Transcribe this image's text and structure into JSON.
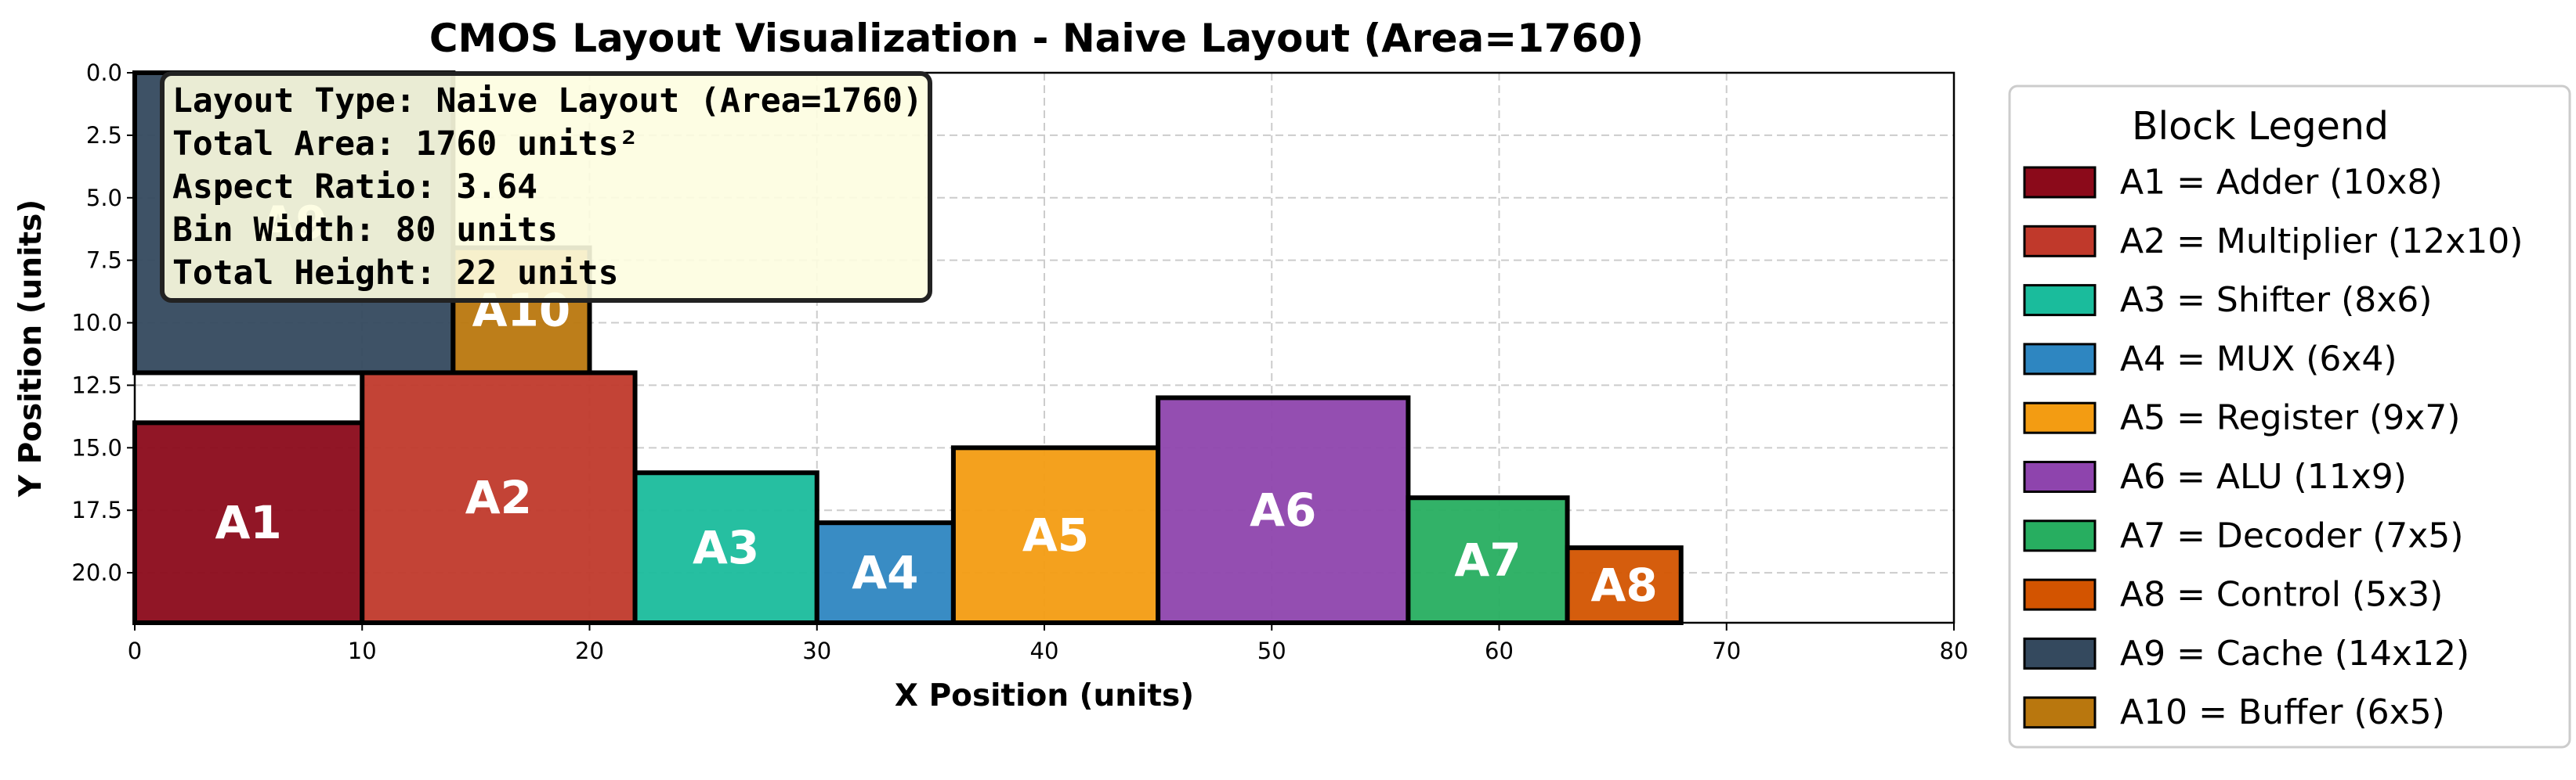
{
  "chart_data": {
    "type": "bar",
    "title": "CMOS Layout Visualization - Naive Layout (Area=1760)",
    "xlabel": "X Position (units)",
    "ylabel": "Y Position (units)",
    "xlim": [
      0,
      80
    ],
    "ylim": [
      0,
      22
    ],
    "y_inverted": true,
    "grid": true,
    "x_ticks": [
      0,
      10,
      20,
      30,
      40,
      50,
      60,
      70,
      80
    ],
    "y_ticks": [
      0.0,
      2.5,
      5.0,
      7.5,
      10.0,
      12.5,
      15.0,
      17.5,
      20.0
    ],
    "x_tick_labels": [
      "0",
      "10",
      "20",
      "30",
      "40",
      "50",
      "60",
      "70",
      "80"
    ],
    "y_tick_labels": [
      "0.0",
      "2.5",
      "5.0",
      "7.5",
      "10.0",
      "12.5",
      "15.0",
      "17.5",
      "20.0"
    ],
    "blocks": [
      {
        "label": "A9",
        "x": 0,
        "y": 0,
        "width": 14,
        "height": 12,
        "color": "#34495e"
      },
      {
        "label": "A10",
        "x": 14,
        "y": 7,
        "width": 6,
        "height": 5,
        "color": "#b9770e"
      },
      {
        "label": "A1",
        "x": 0,
        "y": 14,
        "width": 10,
        "height": 8,
        "color": "#8b0a1a"
      },
      {
        "label": "A2",
        "x": 10,
        "y": 12,
        "width": 12,
        "height": 10,
        "color": "#c0392b"
      },
      {
        "label": "A3",
        "x": 22,
        "y": 16,
        "width": 8,
        "height": 6,
        "color": "#1abc9c"
      },
      {
        "label": "A4",
        "x": 30,
        "y": 18,
        "width": 6,
        "height": 4,
        "color": "#2e86c1"
      },
      {
        "label": "A5",
        "x": 36,
        "y": 15,
        "width": 9,
        "height": 7,
        "color": "#f39c12"
      },
      {
        "label": "A6",
        "x": 45,
        "y": 13,
        "width": 11,
        "height": 9,
        "color": "#8e44ad"
      },
      {
        "label": "A7",
        "x": 56,
        "y": 17,
        "width": 7,
        "height": 5,
        "color": "#27ae60"
      },
      {
        "label": "A8",
        "x": 63,
        "y": 19,
        "width": 5,
        "height": 3,
        "color": "#d35400"
      }
    ],
    "info_box": [
      "Layout Type: Naive Layout (Area=1760)",
      "Total Area: 1760 units²",
      "Aspect Ratio: 3.64",
      "Bin Width: 80 units",
      "Total Height: 22 units"
    ],
    "legend": {
      "title": "Block Legend",
      "placement": "right, outside plot",
      "entries": [
        {
          "text": "A1 = Adder (10x8)",
          "color": "#8b0a1a"
        },
        {
          "text": "A2 = Multiplier (12x10)",
          "color": "#c0392b"
        },
        {
          "text": "A3 = Shifter (8x6)",
          "color": "#1abc9c"
        },
        {
          "text": "A4 = MUX (6x4)",
          "color": "#2e86c1"
        },
        {
          "text": "A5 = Register (9x7)",
          "color": "#f39c12"
        },
        {
          "text": "A6 = ALU (11x9)",
          "color": "#8e44ad"
        },
        {
          "text": "A7 = Decoder (7x5)",
          "color": "#27ae60"
        },
        {
          "text": "A8 = Control (5x3)",
          "color": "#d35400"
        },
        {
          "text": "A9 = Cache (14x12)",
          "color": "#34495e"
        },
        {
          "text": "A10 = Buffer (6x5)",
          "color": "#b9770e"
        }
      ]
    }
  }
}
